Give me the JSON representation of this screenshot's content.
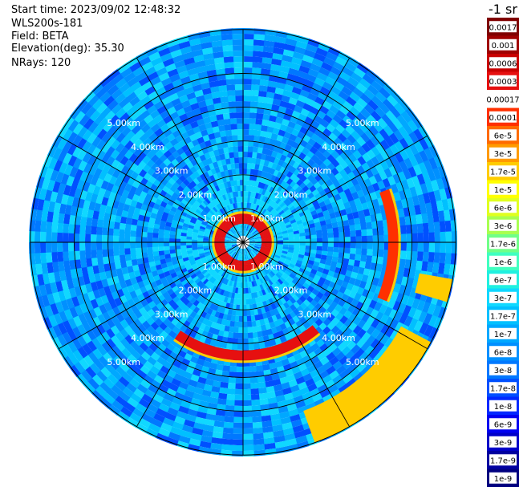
{
  "header": {
    "start_time": "Start time: 2023/09/02 12:48:32",
    "instrument": "WLS200s-181",
    "field": "Field: BETA",
    "elevation": "Elevation(deg): 35.30",
    "nrays": "NRays: 120"
  },
  "colorbar": {
    "unit_label": "-1 sr",
    "levels": [
      {
        "label": "0.0017",
        "color": "#800000"
      },
      {
        "label": "0.001",
        "color": "#a00000"
      },
      {
        "label": "0.0006",
        "color": "#c80000"
      },
      {
        "label": "0.0003",
        "color": "#e61010"
      },
      {
        "label": "0.00017",
        "color": "#ffffff"
      },
      {
        "label": "0.0001",
        "color": "#ff3000"
      },
      {
        "label": "6e-5",
        "color": "#ff6a00"
      },
      {
        "label": "3e-5",
        "color": "#ff9a00"
      },
      {
        "label": "1.7e-5",
        "color": "#ffcc00"
      },
      {
        "label": "1e-5",
        "color": "#ffff00"
      },
      {
        "label": "6e-6",
        "color": "#e0ff20"
      },
      {
        "label": "3e-6",
        "color": "#a8ff50"
      },
      {
        "label": "1.7e-6",
        "color": "#70ff88"
      },
      {
        "label": "1e-6",
        "color": "#40ffc0"
      },
      {
        "label": "6e-7",
        "color": "#20f0e0"
      },
      {
        "label": "3e-7",
        "color": "#10d8ff"
      },
      {
        "label": "1.7e-7",
        "color": "#00c0ff"
      },
      {
        "label": "1e-7",
        "color": "#00a8ff"
      },
      {
        "label": "6e-8",
        "color": "#0090ff"
      },
      {
        "label": "3e-8",
        "color": "#0078ff"
      },
      {
        "label": "1.7e-8",
        "color": "#0050ff"
      },
      {
        "label": "1e-8",
        "color": "#0028ff"
      },
      {
        "label": "6e-9",
        "color": "#0000f0"
      },
      {
        "label": "3e-9",
        "color": "#0000c8"
      },
      {
        "label": "1.7e-9",
        "color": "#0000a0"
      },
      {
        "label": "1e-9",
        "color": "#000080"
      }
    ]
  },
  "chart_data": {
    "type": "heatmap",
    "projection": "polar PPI",
    "field": "BETA",
    "elevation_deg": 35.3,
    "n_rays": 120,
    "range_rings_km": [
      1,
      2,
      3,
      4,
      5
    ],
    "ring_labels": [
      "1.00km",
      "2.00km",
      "3.00km",
      "4.00km",
      "5.00km"
    ],
    "max_range_km": 6.3,
    "spokes_deg": [
      0,
      30,
      60,
      90,
      120,
      150,
      180,
      210,
      240,
      270,
      300,
      330
    ],
    "background_level": "1e-7",
    "features": [
      {
        "description_level": "0.0003",
        "shape": "ring",
        "range_km": [
          0.55,
          0.85
        ],
        "azimuth_deg": [
          0,
          360
        ]
      },
      {
        "description_level": "0.0003",
        "shape": "arc",
        "range_km": [
          3.2,
          3.5
        ],
        "azimuth_deg": [
          140,
          215
        ]
      },
      {
        "description_level": "0.0001",
        "shape": "arc",
        "range_km": [
          4.3,
          4.6
        ],
        "azimuth_deg": [
          70,
          110
        ]
      },
      {
        "description_level": "1.7e-5",
        "shape": "patches",
        "range_km": [
          5.3,
          6.3
        ],
        "azimuth_deg": [
          100,
          160
        ]
      }
    ]
  },
  "colors": {
    "background": "#ffffff",
    "grid": "#000000"
  }
}
